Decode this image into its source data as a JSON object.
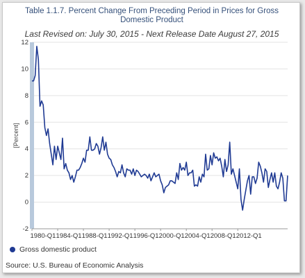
{
  "chart_data": {
    "type": "line",
    "title": "Table 1.1.7. Percent Change From Preceding Period in Prices for Gross Domestic Product",
    "subtitle": "Last Revised on: July 30, 2015 - Next Release Date August 27, 2015",
    "ylabel": "[Percent]",
    "xlabel": "",
    "ylim": [
      -2,
      12
    ],
    "yticks": [
      -2,
      0,
      2,
      4,
      6,
      8,
      10,
      12
    ],
    "x_tick_labels": [
      "1980-Q1",
      "1984-Q1",
      "1988-Q1",
      "1992-Q1",
      "1996-Q1",
      "2000-Q1",
      "2004-Q1",
      "2008-Q1",
      "2012-Q1"
    ],
    "x_start": "1980-Q1",
    "x_end": "2015-Q2",
    "grid": true,
    "legend_position": "bottom-left",
    "series": [
      {
        "name": "Gross domestic product",
        "color": "#1f3a93",
        "values": [
          9.1,
          9.1,
          9.5,
          11.7,
          10.7,
          7.2,
          7.6,
          7.3,
          5.6,
          5.0,
          5.5,
          4.4,
          3.6,
          2.8,
          4.2,
          3.2,
          4.2,
          3.7,
          3.2,
          4.8,
          2.5,
          2.9,
          2.4,
          2.2,
          1.7,
          2.0,
          1.5,
          1.9,
          2.4,
          2.4,
          2.6,
          2.9,
          3.3,
          3.0,
          3.9,
          3.9,
          4.9,
          3.9,
          3.9,
          4.0,
          4.4,
          4.2,
          3.6,
          4.1,
          4.9,
          3.9,
          4.5,
          3.6,
          3.3,
          3.2,
          2.8,
          2.6,
          2.3,
          1.9,
          2.3,
          2.2,
          2.8,
          2.2,
          1.9,
          2.5,
          2.4,
          2.4,
          2.1,
          2.5,
          2.0,
          2.4,
          2.3,
          2.1,
          1.9,
          2.0,
          2.1,
          2.0,
          1.8,
          2.1,
          1.6,
          1.9,
          2.2,
          1.9,
          2.0,
          2.1,
          1.6,
          1.3,
          0.7,
          1.1,
          1.2,
          1.3,
          1.6,
          1.6,
          1.5,
          1.4,
          2.2,
          1.7,
          2.9,
          2.4,
          2.6,
          2.4,
          3.0,
          2.0,
          2.2,
          2.2,
          2.4,
          1.2,
          1.3,
          1.2,
          1.9,
          1.5,
          2.1,
          1.9,
          3.6,
          2.4,
          2.5,
          3.5,
          2.8,
          3.7,
          3.3,
          3.4,
          3.1,
          3.3,
          2.7,
          1.9,
          3.2,
          2.3,
          2.8,
          4.5,
          2.1,
          2.5,
          2.0,
          1.5,
          1.0,
          2.5,
          0.2,
          -0.6,
          0.2,
          0.9,
          1.6,
          2.0,
          0.6,
          1.9,
          1.9,
          1.4,
          1.8,
          3.0,
          2.7,
          2.2,
          1.5,
          2.5,
          2.3,
          1.1,
          1.7,
          2.2,
          1.5,
          2.2,
          1.2,
          1.0,
          1.5,
          2.2,
          1.8,
          0.1,
          0.1,
          2.0
        ]
      }
    ]
  },
  "legend": {
    "label": "Gross domestic product"
  },
  "source": "Source: U.S. Bureau of Economic Analysis"
}
